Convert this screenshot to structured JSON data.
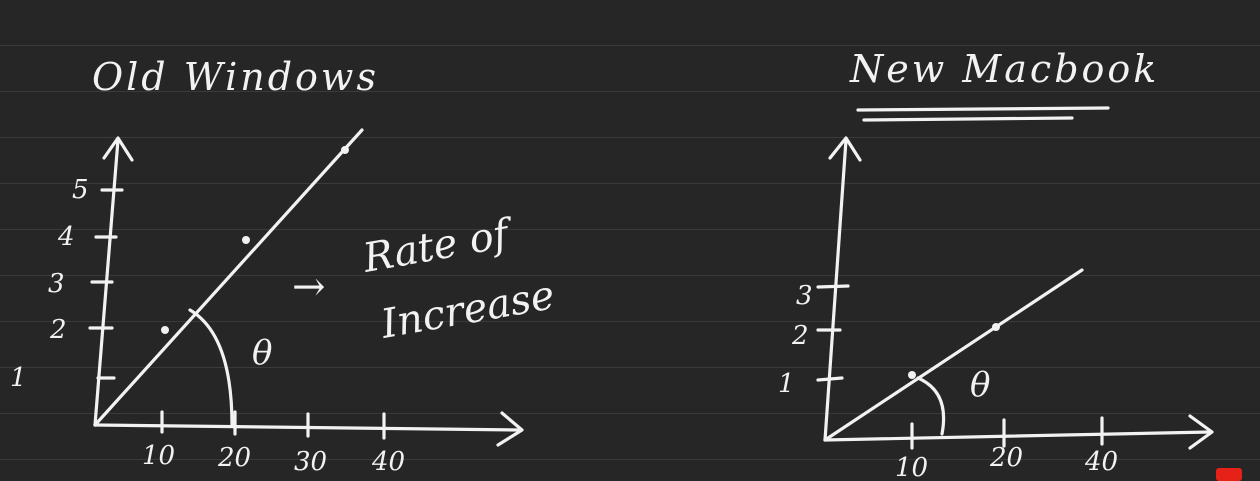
{
  "colors": {
    "background": "#262626",
    "ink": "#f2f2f2",
    "rule_lines": "#3a3a3a"
  },
  "left_chart": {
    "title": "Old Windows",
    "y_ticks": [
      "1",
      "2",
      "3",
      "4",
      "5"
    ],
    "x_ticks": [
      "10",
      "20",
      "30",
      "40"
    ],
    "angle_label": "θ",
    "annotation_arrow": "→",
    "annotation_line1": "Rate of",
    "annotation_line2": "Increase"
  },
  "right_chart": {
    "title": "New Macbook",
    "y_ticks": [
      "1",
      "2",
      "3"
    ],
    "x_ticks": [
      "10",
      "20",
      "40"
    ],
    "angle_label": "θ"
  }
}
